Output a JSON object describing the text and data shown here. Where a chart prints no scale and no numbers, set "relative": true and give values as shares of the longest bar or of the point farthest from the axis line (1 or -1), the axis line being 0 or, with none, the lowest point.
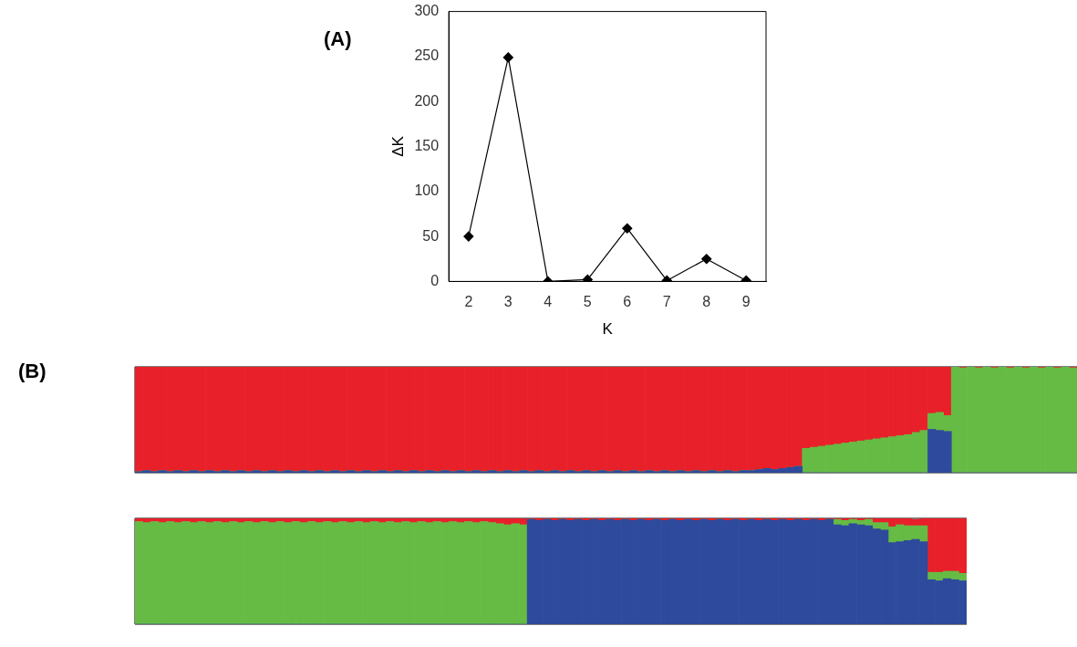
{
  "chart_data": [
    {
      "type": "line",
      "title": "(A)",
      "xlabel": "K",
      "ylabel": "ΔK",
      "categories": [
        "2",
        "3",
        "4",
        "5",
        "6",
        "7",
        "8",
        "9"
      ],
      "series": [
        {
          "color": "#000000",
          "values": [
            50,
            249,
            0,
            2,
            59,
            1,
            25,
            1
          ]
        }
      ],
      "ylim": [
        0,
        300
      ],
      "yticks": [
        0,
        50,
        100,
        150,
        200,
        250,
        300
      ],
      "grid": false,
      "legend": false,
      "marker": "diamond",
      "line_style": "solid"
    },
    {
      "type": "bar",
      "title": "(B)",
      "stacked": true,
      "relative": true,
      "grid": false,
      "legend": false,
      "categories": [
        null,
        null,
        null,
        null,
        null,
        null,
        null,
        null,
        null,
        null,
        null,
        null,
        null,
        null,
        null,
        null,
        null,
        null,
        null,
        null,
        null,
        null,
        null,
        null,
        null,
        null,
        null,
        null,
        null,
        null,
        null,
        null,
        null,
        null,
        null,
        null,
        null,
        null,
        null,
        null,
        null,
        null,
        null,
        null,
        null,
        null,
        null,
        null,
        null,
        null,
        null,
        null,
        null,
        null,
        null,
        null,
        null,
        null,
        null,
        null,
        null,
        null,
        null,
        null,
        null,
        null,
        null,
        null,
        null,
        null,
        null,
        null,
        null,
        null,
        null,
        null,
        null,
        null,
        null,
        null,
        null,
        null,
        null,
        null,
        null,
        null,
        null,
        null,
        null,
        null,
        null,
        null,
        null,
        null,
        null,
        null,
        null,
        null,
        null,
        null,
        null,
        null,
        null,
        null,
        null,
        null,
        null,
        null,
        null,
        null,
        null,
        null,
        null,
        null,
        null,
        null,
        null,
        null,
        null,
        null
      ],
      "series": [
        {
          "color": "#2e4a9c",
          "values": [
            0.01,
            0.02,
            0.01,
            0.02,
            0.01,
            0.02,
            0.01,
            0.02,
            0.01,
            0.02,
            0.01,
            0.02,
            0.01,
            0.02,
            0.01,
            0.02,
            0.01,
            0.02,
            0.01,
            0.02,
            0.01,
            0.02,
            0.01,
            0.02,
            0.01,
            0.02,
            0.01,
            0.02,
            0.01,
            0.02,
            0.01,
            0.02,
            0.01,
            0.02,
            0.01,
            0.02,
            0.01,
            0.02,
            0.01,
            0.02,
            0.01,
            0.02,
            0.01,
            0.02,
            0.01,
            0.02,
            0.01,
            0.02,
            0.01,
            0.02,
            0.01,
            0.02,
            0.01,
            0.02,
            0.01,
            0.02,
            0.01,
            0.02,
            0.01,
            0.02,
            0.01,
            0.02,
            0.01,
            0.02,
            0.01,
            0.02,
            0.01,
            0.02,
            0.01,
            0.02,
            0.01,
            0.02,
            0.01,
            0.02,
            0.01,
            0.02,
            0.01,
            0.02,
            0.02,
            0.03,
            0.04,
            0.03,
            0.04,
            0.05,
            0.06,
            0,
            0,
            0,
            0,
            0,
            0,
            0,
            0,
            0,
            0,
            0,
            0,
            0,
            0,
            0,
            0,
            0.41,
            0.4,
            0.39,
            0,
            0,
            0,
            0,
            0,
            0,
            0,
            0,
            0,
            0,
            0,
            0,
            0,
            0,
            0,
            0
          ]
        },
        {
          "color": "#66bb44",
          "values": [
            0,
            0,
            0,
            0,
            0,
            0,
            0,
            0,
            0,
            0,
            0,
            0,
            0,
            0,
            0,
            0,
            0,
            0,
            0,
            0,
            0,
            0,
            0,
            0,
            0,
            0,
            0,
            0,
            0,
            0,
            0,
            0,
            0,
            0,
            0,
            0,
            0,
            0,
            0,
            0,
            0,
            0,
            0,
            0,
            0,
            0,
            0,
            0,
            0,
            0,
            0,
            0,
            0,
            0,
            0,
            0,
            0,
            0,
            0,
            0,
            0,
            0,
            0,
            0,
            0,
            0,
            0,
            0,
            0,
            0,
            0,
            0,
            0,
            0,
            0,
            0,
            0,
            0,
            0,
            0,
            0,
            0,
            0,
            0,
            0,
            0.23,
            0.24,
            0.25,
            0.26,
            0.27,
            0.28,
            0.29,
            0.3,
            0.31,
            0.32,
            0.33,
            0.34,
            0.35,
            0.36,
            0.38,
            0.4,
            0.15,
            0.17,
            0.15,
            1,
            0.99,
            1,
            0.99,
            1,
            0.99,
            1,
            0.99,
            1,
            0.99,
            1,
            0.99,
            1,
            0.99,
            1,
            0.99
          ]
        },
        {
          "color": "#e8202a",
          "values": [
            0.99,
            0.98,
            0.99,
            0.98,
            0.99,
            0.98,
            0.99,
            0.98,
            0.99,
            0.98,
            0.99,
            0.98,
            0.99,
            0.98,
            0.99,
            0.98,
            0.99,
            0.98,
            0.99,
            0.98,
            0.99,
            0.98,
            0.99,
            0.98,
            0.99,
            0.98,
            0.99,
            0.98,
            0.99,
            0.98,
            0.99,
            0.98,
            0.99,
            0.98,
            0.99,
            0.98,
            0.99,
            0.98,
            0.99,
            0.98,
            0.99,
            0.98,
            0.99,
            0.98,
            0.99,
            0.98,
            0.99,
            0.98,
            0.99,
            0.98,
            0.99,
            0.98,
            0.99,
            0.98,
            0.99,
            0.98,
            0.99,
            0.98,
            0.99,
            0.98,
            0.99,
            0.98,
            0.99,
            0.98,
            0.99,
            0.98,
            0.99,
            0.98,
            0.99,
            0.98,
            0.99,
            0.98,
            0.99,
            0.98,
            0.99,
            0.98,
            0.99,
            0.98,
            0.98,
            0.97,
            0.96,
            0.97,
            0.96,
            0.95,
            0.94,
            0.77,
            0.76,
            0.75,
            0.74,
            0.73,
            0.72,
            0.71,
            0.7,
            0.69,
            0.68,
            0.67,
            0.66,
            0.65,
            0.64,
            0.62,
            0.6,
            0.44,
            0.43,
            0.46,
            0,
            0.01,
            0,
            0.01,
            0,
            0.01,
            0,
            0.01,
            0,
            0.01,
            0,
            0.01,
            0,
            0.01,
            0,
            0.01
          ]
        }
      ]
    },
    {
      "type": "bar",
      "stacked": true,
      "relative": true,
      "grid": false,
      "legend": false,
      "categories": [
        null,
        null,
        null,
        null,
        null,
        null,
        null,
        null,
        null,
        null,
        null,
        null,
        null,
        null,
        null,
        null,
        null,
        null,
        null,
        null,
        null,
        null,
        null,
        null,
        null,
        null,
        null,
        null,
        null,
        null,
        null,
        null,
        null,
        null,
        null,
        null,
        null,
        null,
        null,
        null,
        null,
        null,
        null,
        null,
        null,
        null,
        null,
        null,
        null,
        null,
        null,
        null,
        null,
        null,
        null,
        null,
        null,
        null,
        null,
        null,
        null,
        null,
        null,
        null,
        null,
        null,
        null,
        null,
        null,
        null,
        null,
        null,
        null,
        null,
        null,
        null,
        null,
        null,
        null,
        null,
        null,
        null,
        null,
        null,
        null,
        null,
        null,
        null,
        null,
        null,
        null,
        null,
        null,
        null,
        null,
        null,
        null,
        null,
        null,
        null,
        null,
        null,
        null,
        null,
        null,
        null
      ],
      "series": [
        {
          "color": "#2e4a9c",
          "values": [
            0,
            0,
            0,
            0,
            0,
            0,
            0,
            0,
            0,
            0,
            0,
            0,
            0,
            0,
            0,
            0,
            0,
            0,
            0,
            0,
            0,
            0,
            0,
            0,
            0,
            0,
            0,
            0,
            0,
            0,
            0,
            0,
            0,
            0,
            0,
            0,
            0,
            0,
            0,
            0,
            0,
            0,
            0,
            0,
            0,
            0,
            0,
            0,
            0,
            0,
            0.99,
            0.98,
            0.99,
            0.98,
            0.99,
            0.98,
            0.99,
            0.98,
            0.99,
            0.98,
            0.99,
            0.98,
            0.99,
            0.98,
            0.99,
            0.98,
            0.99,
            0.98,
            0.99,
            0.98,
            0.99,
            0.98,
            0.99,
            0.98,
            0.99,
            0.98,
            0.99,
            0.98,
            0.99,
            0.98,
            0.99,
            0.98,
            0.99,
            0.98,
            0.99,
            0.98,
            0.99,
            0.98,
            0.99,
            0.94,
            0.93,
            0.95,
            0.94,
            0.93,
            0.9,
            0.89,
            0.77,
            0.78,
            0.79,
            0.8,
            0.78,
            0.42,
            0.41,
            0.43,
            0.42,
            0.41
          ]
        },
        {
          "color": "#66bb44",
          "values": [
            0.97,
            0.96,
            0.97,
            0.96,
            0.97,
            0.96,
            0.97,
            0.96,
            0.97,
            0.96,
            0.97,
            0.96,
            0.97,
            0.96,
            0.97,
            0.96,
            0.97,
            0.96,
            0.97,
            0.96,
            0.97,
            0.96,
            0.97,
            0.96,
            0.97,
            0.96,
            0.97,
            0.96,
            0.97,
            0.96,
            0.97,
            0.96,
            0.97,
            0.96,
            0.97,
            0.96,
            0.97,
            0.96,
            0.97,
            0.96,
            0.97,
            0.96,
            0.97,
            0.96,
            0.97,
            0.96,
            0.95,
            0.94,
            0.95,
            0.94,
            0,
            0,
            0,
            0,
            0,
            0,
            0,
            0,
            0,
            0,
            0,
            0,
            0,
            0,
            0,
            0,
            0,
            0,
            0,
            0,
            0,
            0,
            0,
            0,
            0,
            0,
            0,
            0,
            0,
            0,
            0,
            0,
            0,
            0,
            0,
            0,
            0,
            0,
            0,
            0.05,
            0.05,
            0.04,
            0.04,
            0.06,
            0.06,
            0.07,
            0.15,
            0.16,
            0.14,
            0.13,
            0.15,
            0.07,
            0.08,
            0.07,
            0.08,
            0.07
          ]
        },
        {
          "color": "#e8202a",
          "values": [
            0.03,
            0.04,
            0.03,
            0.04,
            0.03,
            0.04,
            0.03,
            0.04,
            0.03,
            0.04,
            0.03,
            0.04,
            0.03,
            0.04,
            0.03,
            0.04,
            0.03,
            0.04,
            0.03,
            0.04,
            0.03,
            0.04,
            0.03,
            0.04,
            0.03,
            0.04,
            0.03,
            0.04,
            0.03,
            0.04,
            0.03,
            0.04,
            0.03,
            0.04,
            0.03,
            0.04,
            0.03,
            0.04,
            0.03,
            0.04,
            0.03,
            0.04,
            0.03,
            0.04,
            0.03,
            0.04,
            0.05,
            0.06,
            0.05,
            0.06,
            0.01,
            0.02,
            0.01,
            0.02,
            0.01,
            0.02,
            0.01,
            0.02,
            0.01,
            0.02,
            0.01,
            0.02,
            0.01,
            0.02,
            0.01,
            0.02,
            0.01,
            0.02,
            0.01,
            0.02,
            0.01,
            0.02,
            0.01,
            0.02,
            0.01,
            0.02,
            0.01,
            0.02,
            0.01,
            0.02,
            0.01,
            0.02,
            0.01,
            0.02,
            0.01,
            0.02,
            0.01,
            0.02,
            0.01,
            0.01,
            0.02,
            0.01,
            0.02,
            0.01,
            0.04,
            0.04,
            0.08,
            0.06,
            0.07,
            0.06,
            0.07,
            0.51,
            0.51,
            0.5,
            0.5,
            0.52
          ]
        }
      ]
    }
  ]
}
